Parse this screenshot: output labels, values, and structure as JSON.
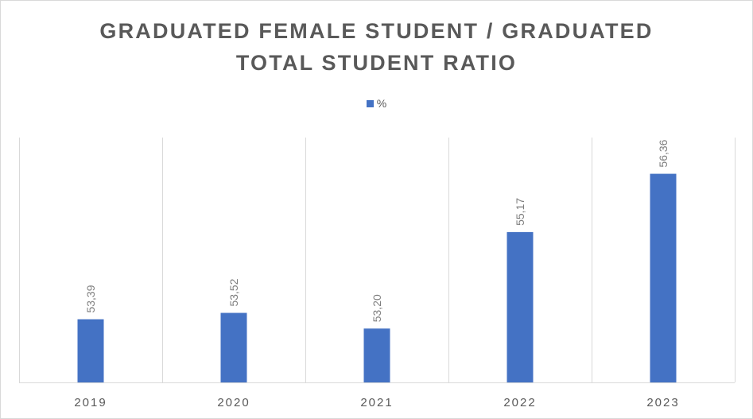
{
  "chart_data": {
    "type": "bar",
    "title_lines": [
      "GRADUATED FEMALE STUDENT / GRADUATED",
      "TOTAL STUDENT RATIO"
    ],
    "legend_position": "top",
    "categories": [
      "2019",
      "2020",
      "2021",
      "2022",
      "2023"
    ],
    "series": [
      {
        "name": "%",
        "values": [
          53.39,
          53.52,
          53.2,
          55.17,
          56.36
        ],
        "data_labels": [
          "53,39",
          "53,52",
          "53,20",
          "55,17",
          "56,36"
        ],
        "color": "#4472c4"
      }
    ],
    "ylim": [
      52.1,
      57.1
    ],
    "grid": "vertical category separators",
    "colors": {
      "bar": "#4472c4",
      "gridline": "#d9d9d9",
      "text": "#595959",
      "data_label": "#7f7f7f"
    }
  }
}
